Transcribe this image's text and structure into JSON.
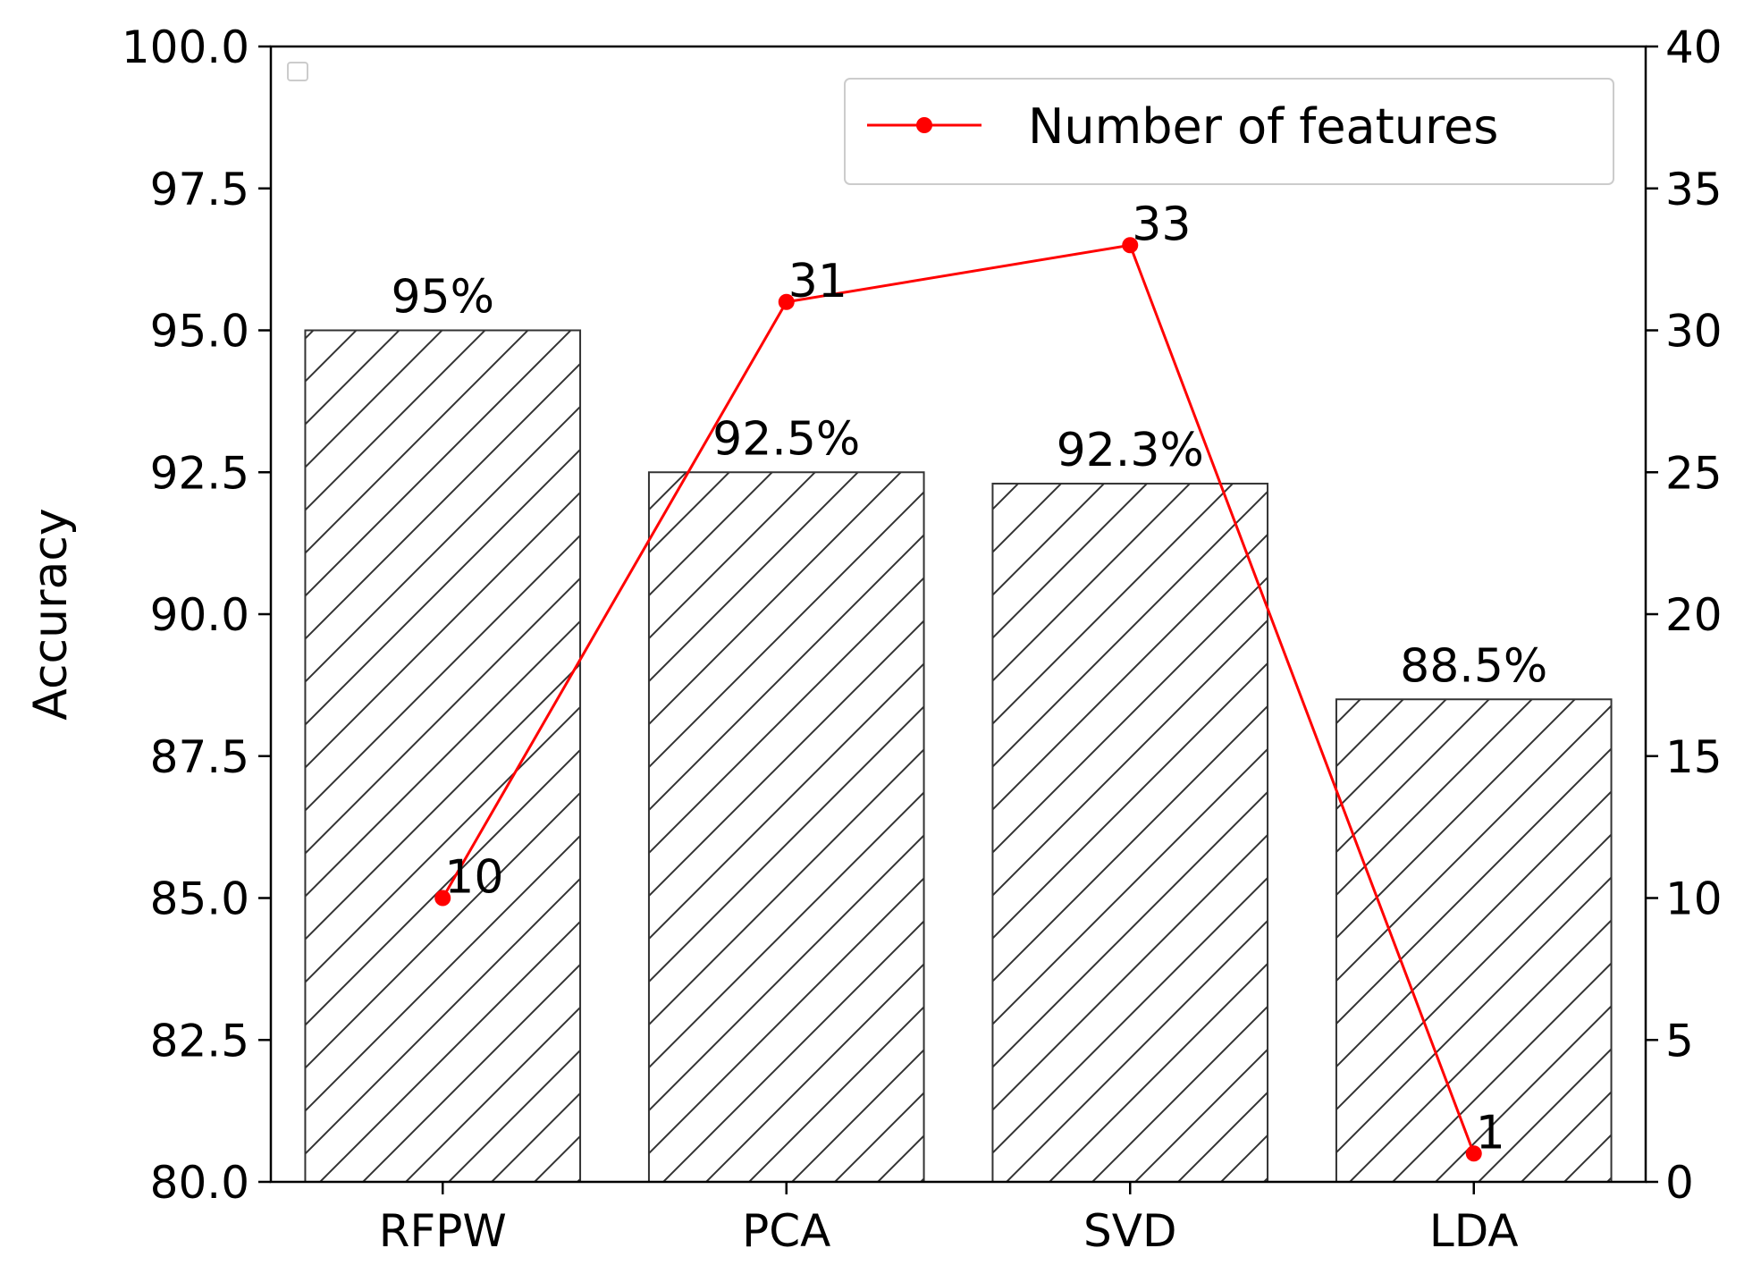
{
  "chart_data": {
    "type": "bar",
    "title": "",
    "xlabel": "",
    "ylabel": "Accuracy",
    "y2label": "",
    "categories": [
      "RFPW",
      "PCA",
      "SVD",
      "LDA"
    ],
    "ylim": [
      80.0,
      100.0
    ],
    "y2lim": [
      0,
      40
    ],
    "yticks": [
      "80.0",
      "82.5",
      "85.0",
      "87.5",
      "90.0",
      "92.5",
      "95.0",
      "97.5",
      "100.0"
    ],
    "y2ticks": [
      "0",
      "5",
      "10",
      "15",
      "20",
      "25",
      "30",
      "35",
      "40"
    ],
    "grid": false,
    "series": [
      {
        "type": "bar",
        "axis": "left",
        "values": [
          95.0,
          92.5,
          92.3,
          88.5
        ],
        "labels": [
          "95%",
          "92.5%",
          "92.3%",
          "88.5%"
        ],
        "fill": "#ffffff",
        "edge_color": "#333333",
        "hatch": "/"
      },
      {
        "type": "line",
        "axis": "right",
        "name": "Number of features",
        "values": [
          10,
          31,
          33,
          1
        ],
        "labels": [
          "10",
          "31",
          "33",
          "1"
        ],
        "color": "#ff0000",
        "marker": "circle"
      }
    ],
    "legend": {
      "placement": "top-right",
      "entries": [
        "Number of features"
      ]
    }
  }
}
